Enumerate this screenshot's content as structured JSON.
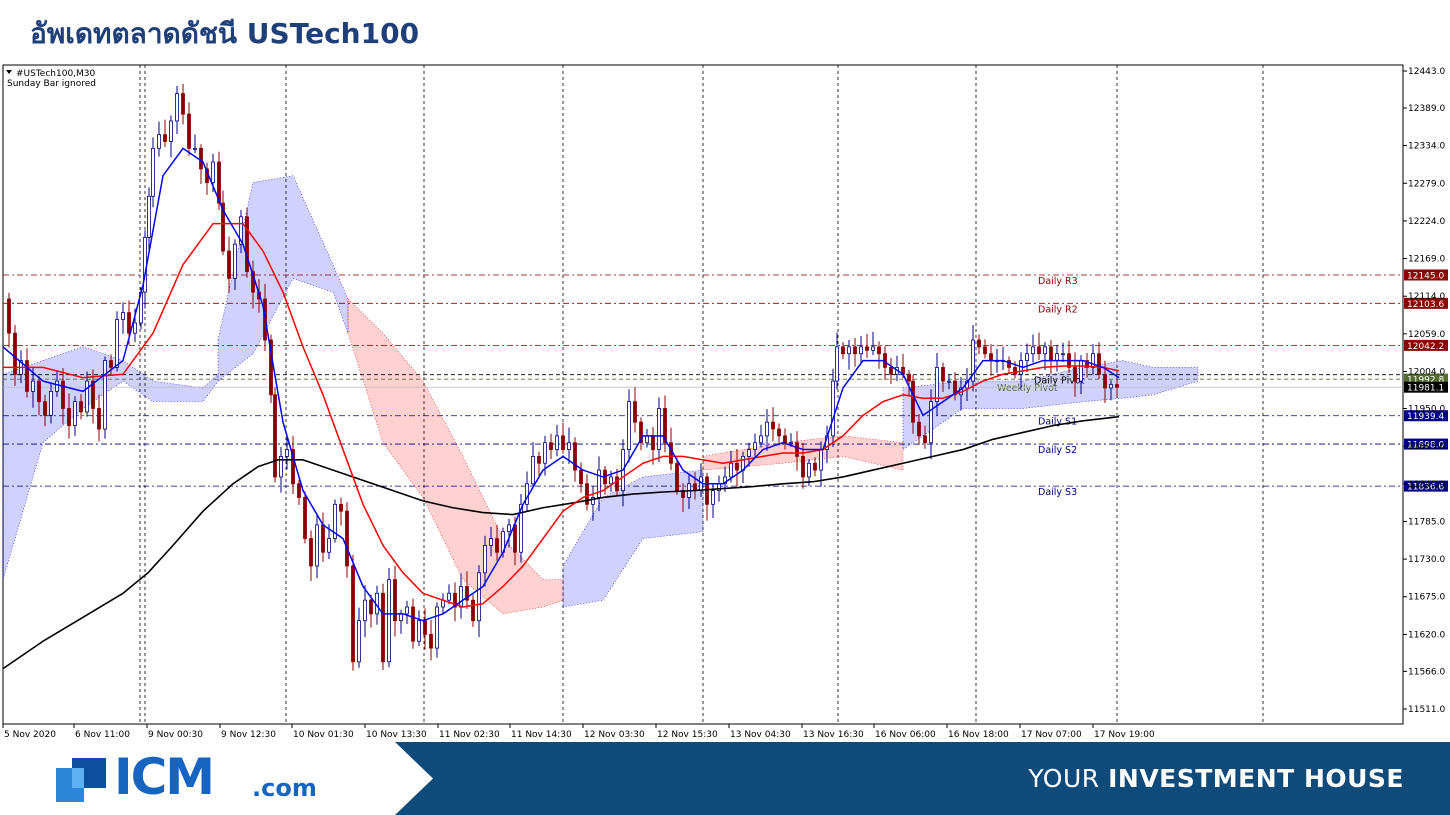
{
  "page_title": "อัพเดทตลาดดัชนี USTech100",
  "footer": {
    "logo_text": "ICM",
    "logo_suffix": ".com",
    "slogan_light": "YOUR ",
    "slogan_bold": "INVESTMENT HOUSE"
  },
  "colors": {
    "title": "#1f3f78",
    "band": "#0e4a7a",
    "ma_fast": "#0000ff",
    "ma_mid": "#ff0000",
    "ma_slow": "#000000",
    "bull": "#000080",
    "bear": "#8b0000",
    "resistance": "#8b0000",
    "support": "#000080"
  },
  "chart_data": {
    "type": "candlestick",
    "symbol_label": "#USTech100,M30",
    "note": "Sunday Bar ignored",
    "ylim": [
      11490,
      12460
    ],
    "y_ticks": [
      "12443.0",
      "12389.0",
      "12334.0",
      "12279.0",
      "12224.0",
      "12169.0",
      "12114.0",
      "12059.0",
      "12004.0",
      "11950.0",
      "11895.0",
      "11840.0",
      "11785.0",
      "11730.0",
      "11675.0",
      "11620.0",
      "11566.0",
      "11511.0"
    ],
    "x_ticks": [
      "5 Nov 2020",
      "6 Nov 11:00",
      "9 Nov 00:30",
      "9 Nov 12:30",
      "10 Nov 01:30",
      "10 Nov 13:30",
      "11 Nov 02:30",
      "11 Nov 14:30",
      "12 Nov 03:30",
      "12 Nov 15:30",
      "13 Nov 04:30",
      "13 Nov 16:30",
      "16 Nov 06:00",
      "16 Nov 18:00",
      "17 Nov 07:00",
      "17 Nov 19:00"
    ],
    "levels": [
      {
        "name": "Daily R3",
        "value": 12145.0,
        "tag": "12145.0",
        "kind": "resistance"
      },
      {
        "name": "Daily R2",
        "value": 12103.6,
        "tag": "12103.6",
        "kind": "resistance"
      },
      {
        "name": "",
        "value": 12042.2,
        "tag": "12042.2",
        "kind": "resistance"
      },
      {
        "name": "Daily Pivot",
        "value": 11999.4,
        "tag": "",
        "kind": "pivot"
      },
      {
        "name": "Weekly Pivot",
        "value": 11992.8,
        "tag": "11992.8",
        "kind": "weekly"
      },
      {
        "name": "",
        "value": 11981.1,
        "tag": "11981.1",
        "kind": "current"
      },
      {
        "name": "Daily S1",
        "value": 11939.4,
        "tag": "11939.4",
        "kind": "support"
      },
      {
        "name": "Daily S2",
        "value": 11898.0,
        "tag": "11898.0",
        "kind": "support"
      },
      {
        "name": "Daily S3",
        "value": 11836.6,
        "tag": "11836.6",
        "kind": "support"
      }
    ],
    "price_path": [
      [
        0,
        12110
      ],
      [
        6,
        12060
      ],
      [
        12,
        12000
      ],
      [
        18,
        12020
      ],
      [
        24,
        11975
      ],
      [
        30,
        11990
      ],
      [
        36,
        11960
      ],
      [
        42,
        11940
      ],
      [
        48,
        11975
      ],
      [
        54,
        11990
      ],
      [
        60,
        11950
      ],
      [
        66,
        11925
      ],
      [
        72,
        11960
      ],
      [
        78,
        11945
      ],
      [
        84,
        11990
      ],
      [
        90,
        11950
      ],
      [
        96,
        11920
      ],
      [
        102,
        12020
      ],
      [
        108,
        12010
      ],
      [
        114,
        12080
      ],
      [
        120,
        12090
      ],
      [
        126,
        12060
      ],
      [
        132,
        12075
      ],
      [
        138,
        12120
      ],
      [
        142,
        12200
      ],
      [
        146,
        12260
      ],
      [
        150,
        12330
      ],
      [
        156,
        12350
      ],
      [
        162,
        12340
      ],
      [
        168,
        12370
      ],
      [
        174,
        12410
      ],
      [
        180,
        12380
      ],
      [
        186,
        12330
      ],
      [
        192,
        12330
      ],
      [
        198,
        12300
      ],
      [
        204,
        12280
      ],
      [
        210,
        12310
      ],
      [
        216,
        12250
      ],
      [
        220,
        12180
      ],
      [
        226,
        12140
      ],
      [
        232,
        12190
      ],
      [
        238,
        12230
      ],
      [
        244,
        12150
      ],
      [
        250,
        12120
      ],
      [
        256,
        12110
      ],
      [
        262,
        12050
      ],
      [
        268,
        11970
      ],
      [
        272,
        11850
      ],
      [
        278,
        11880
      ],
      [
        284,
        11890
      ],
      [
        290,
        11840
      ],
      [
        296,
        11820
      ],
      [
        302,
        11760
      ],
      [
        308,
        11720
      ],
      [
        314,
        11780
      ],
      [
        320,
        11740
      ],
      [
        326,
        11760
      ],
      [
        332,
        11810
      ],
      [
        338,
        11800
      ],
      [
        344,
        11720
      ],
      [
        350,
        11580
      ],
      [
        356,
        11640
      ],
      [
        362,
        11670
      ],
      [
        368,
        11650
      ],
      [
        374,
        11680
      ],
      [
        380,
        11580
      ],
      [
        386,
        11700
      ],
      [
        392,
        11640
      ],
      [
        398,
        11650
      ],
      [
        404,
        11660
      ],
      [
        410,
        11610
      ],
      [
        416,
        11640
      ],
      [
        422,
        11620
      ],
      [
        428,
        11600
      ],
      [
        434,
        11660
      ],
      [
        440,
        11670
      ],
      [
        446,
        11680
      ],
      [
        452,
        11660
      ],
      [
        458,
        11690
      ],
      [
        464,
        11670
      ],
      [
        470,
        11640
      ],
      [
        476,
        11710
      ],
      [
        482,
        11750
      ],
      [
        488,
        11760
      ],
      [
        494,
        11740
      ],
      [
        500,
        11770
      ],
      [
        506,
        11780
      ],
      [
        512,
        11740
      ],
      [
        518,
        11810
      ],
      [
        524,
        11840
      ],
      [
        530,
        11880
      ],
      [
        536,
        11870
      ],
      [
        542,
        11900
      ],
      [
        548,
        11890
      ],
      [
        554,
        11910
      ],
      [
        560,
        11890
      ],
      [
        566,
        11900
      ],
      [
        572,
        11860
      ],
      [
        578,
        11840
      ],
      [
        584,
        11810
      ],
      [
        590,
        11820
      ],
      [
        596,
        11860
      ],
      [
        602,
        11840
      ],
      [
        608,
        11850
      ],
      [
        614,
        11830
      ],
      [
        620,
        11890
      ],
      [
        626,
        11960
      ],
      [
        632,
        11930
      ],
      [
        638,
        11900
      ],
      [
        644,
        11910
      ],
      [
        650,
        11890
      ],
      [
        656,
        11950
      ],
      [
        662,
        11900
      ],
      [
        668,
        11870
      ],
      [
        674,
        11830
      ],
      [
        680,
        11820
      ],
      [
        686,
        11840
      ],
      [
        692,
        11830
      ],
      [
        698,
        11850
      ],
      [
        704,
        11810
      ],
      [
        710,
        11830
      ],
      [
        716,
        11840
      ],
      [
        722,
        11850
      ],
      [
        728,
        11870
      ],
      [
        734,
        11860
      ],
      [
        740,
        11880
      ],
      [
        746,
        11890
      ],
      [
        752,
        11900
      ],
      [
        758,
        11910
      ],
      [
        764,
        11930
      ],
      [
        770,
        11920
      ],
      [
        776,
        11910
      ],
      [
        782,
        11900
      ],
      [
        788,
        11900
      ],
      [
        794,
        11880
      ],
      [
        800,
        11850
      ],
      [
        806,
        11870
      ],
      [
        812,
        11860
      ],
      [
        818,
        11890
      ],
      [
        824,
        11910
      ],
      [
        830,
        11990
      ],
      [
        834,
        12040
      ],
      [
        840,
        12030
      ],
      [
        846,
        12040
      ],
      [
        852,
        12030
      ],
      [
        858,
        12040
      ],
      [
        864,
        12035
      ],
      [
        870,
        12040
      ],
      [
        876,
        12030
      ],
      [
        882,
        12010
      ],
      [
        888,
        12000
      ],
      [
        894,
        12010
      ],
      [
        900,
        12000
      ],
      [
        906,
        11990
      ],
      [
        910,
        11930
      ],
      [
        916,
        11910
      ],
      [
        922,
        11900
      ],
      [
        928,
        11960
      ],
      [
        934,
        12010
      ],
      [
        940,
        11990
      ],
      [
        946,
        11990
      ],
      [
        952,
        11970
      ],
      [
        958,
        11980
      ],
      [
        964,
        11990
      ],
      [
        970,
        12050
      ],
      [
        976,
        12040
      ],
      [
        982,
        12030
      ],
      [
        988,
        12020
      ],
      [
        994,
        12020
      ],
      [
        1000,
        12020
      ],
      [
        1006,
        12010
      ],
      [
        1012,
        12000
      ],
      [
        1018,
        12020
      ],
      [
        1024,
        12030
      ],
      [
        1030,
        12040
      ],
      [
        1036,
        12030
      ],
      [
        1042,
        12040
      ],
      [
        1048,
        12020
      ],
      [
        1054,
        12030
      ],
      [
        1060,
        12030
      ],
      [
        1066,
        12010
      ],
      [
        1072,
        11990
      ],
      [
        1078,
        12020
      ],
      [
        1084,
        12010
      ],
      [
        1090,
        12030
      ],
      [
        1096,
        12000
      ],
      [
        1102,
        11980
      ],
      [
        1108,
        11985
      ],
      [
        1114,
        11981
      ]
    ],
    "ma_fast": [
      [
        0,
        12040
      ],
      [
        40,
        11990
      ],
      [
        80,
        11975
      ],
      [
        120,
        12020
      ],
      [
        140,
        12130
      ],
      [
        160,
        12290
      ],
      [
        180,
        12330
      ],
      [
        200,
        12310
      ],
      [
        220,
        12240
      ],
      [
        240,
        12190
      ],
      [
        260,
        12100
      ],
      [
        280,
        11930
      ],
      [
        300,
        11830
      ],
      [
        320,
        11780
      ],
      [
        340,
        11760
      ],
      [
        360,
        11690
      ],
      [
        380,
        11650
      ],
      [
        400,
        11650
      ],
      [
        420,
        11640
      ],
      [
        440,
        11650
      ],
      [
        460,
        11670
      ],
      [
        480,
        11690
      ],
      [
        500,
        11740
      ],
      [
        520,
        11810
      ],
      [
        540,
        11860
      ],
      [
        560,
        11880
      ],
      [
        580,
        11860
      ],
      [
        600,
        11850
      ],
      [
        620,
        11860
      ],
      [
        640,
        11910
      ],
      [
        660,
        11910
      ],
      [
        680,
        11860
      ],
      [
        700,
        11840
      ],
      [
        720,
        11840
      ],
      [
        740,
        11860
      ],
      [
        760,
        11890
      ],
      [
        780,
        11900
      ],
      [
        800,
        11890
      ],
      [
        820,
        11890
      ],
      [
        840,
        11980
      ],
      [
        860,
        12020
      ],
      [
        880,
        12020
      ],
      [
        900,
        12000
      ],
      [
        920,
        11940
      ],
      [
        940,
        11960
      ],
      [
        960,
        11980
      ],
      [
        980,
        12020
      ],
      [
        1000,
        12020
      ],
      [
        1020,
        12010
      ],
      [
        1040,
        12020
      ],
      [
        1060,
        12020
      ],
      [
        1080,
        12020
      ],
      [
        1100,
        12010
      ],
      [
        1116,
        11995
      ]
    ],
    "ma_mid": [
      [
        0,
        12010
      ],
      [
        40,
        12010
      ],
      [
        80,
        11995
      ],
      [
        120,
        12000
      ],
      [
        150,
        12060
      ],
      [
        180,
        12160
      ],
      [
        210,
        12220
      ],
      [
        240,
        12220
      ],
      [
        260,
        12180
      ],
      [
        280,
        12120
      ],
      [
        300,
        12040
      ],
      [
        320,
        11970
      ],
      [
        340,
        11890
      ],
      [
        360,
        11810
      ],
      [
        380,
        11750
      ],
      [
        400,
        11710
      ],
      [
        420,
        11680
      ],
      [
        440,
        11670
      ],
      [
        460,
        11660
      ],
      [
        480,
        11665
      ],
      [
        500,
        11690
      ],
      [
        520,
        11720
      ],
      [
        540,
        11760
      ],
      [
        560,
        11800
      ],
      [
        580,
        11820
      ],
      [
        600,
        11830
      ],
      [
        620,
        11850
      ],
      [
        640,
        11870
      ],
      [
        660,
        11880
      ],
      [
        680,
        11880
      ],
      [
        700,
        11875
      ],
      [
        720,
        11870
      ],
      [
        740,
        11875
      ],
      [
        760,
        11880
      ],
      [
        780,
        11885
      ],
      [
        800,
        11885
      ],
      [
        820,
        11890
      ],
      [
        840,
        11910
      ],
      [
        860,
        11940
      ],
      [
        880,
        11960
      ],
      [
        900,
        11970
      ],
      [
        920,
        11965
      ],
      [
        940,
        11965
      ],
      [
        960,
        11975
      ],
      [
        980,
        11990
      ],
      [
        1000,
        12000
      ],
      [
        1020,
        12005
      ],
      [
        1040,
        12010
      ],
      [
        1060,
        12012
      ],
      [
        1080,
        12012
      ],
      [
        1100,
        12010
      ],
      [
        1116,
        12005
      ]
    ],
    "ma_slow": [
      [
        0,
        11570
      ],
      [
        40,
        11610
      ],
      [
        80,
        11645
      ],
      [
        120,
        11680
      ],
      [
        145,
        11710
      ],
      [
        170,
        11750
      ],
      [
        200,
        11800
      ],
      [
        230,
        11840
      ],
      [
        255,
        11865
      ],
      [
        275,
        11875
      ],
      [
        300,
        11875
      ],
      [
        330,
        11860
      ],
      [
        360,
        11845
      ],
      [
        390,
        11830
      ],
      [
        420,
        11815
      ],
      [
        450,
        11805
      ],
      [
        480,
        11798
      ],
      [
        510,
        11795
      ],
      [
        540,
        11805
      ],
      [
        570,
        11812
      ],
      [
        600,
        11820
      ],
      [
        630,
        11825
      ],
      [
        660,
        11828
      ],
      [
        690,
        11830
      ],
      [
        720,
        11833
      ],
      [
        750,
        11836
      ],
      [
        780,
        11840
      ],
      [
        810,
        11843
      ],
      [
        840,
        11850
      ],
      [
        870,
        11860
      ],
      [
        900,
        11870
      ],
      [
        930,
        11880
      ],
      [
        960,
        11890
      ],
      [
        990,
        11905
      ],
      [
        1020,
        11915
      ],
      [
        1050,
        11925
      ],
      [
        1080,
        11932
      ],
      [
        1116,
        11938
      ]
    ]
  }
}
